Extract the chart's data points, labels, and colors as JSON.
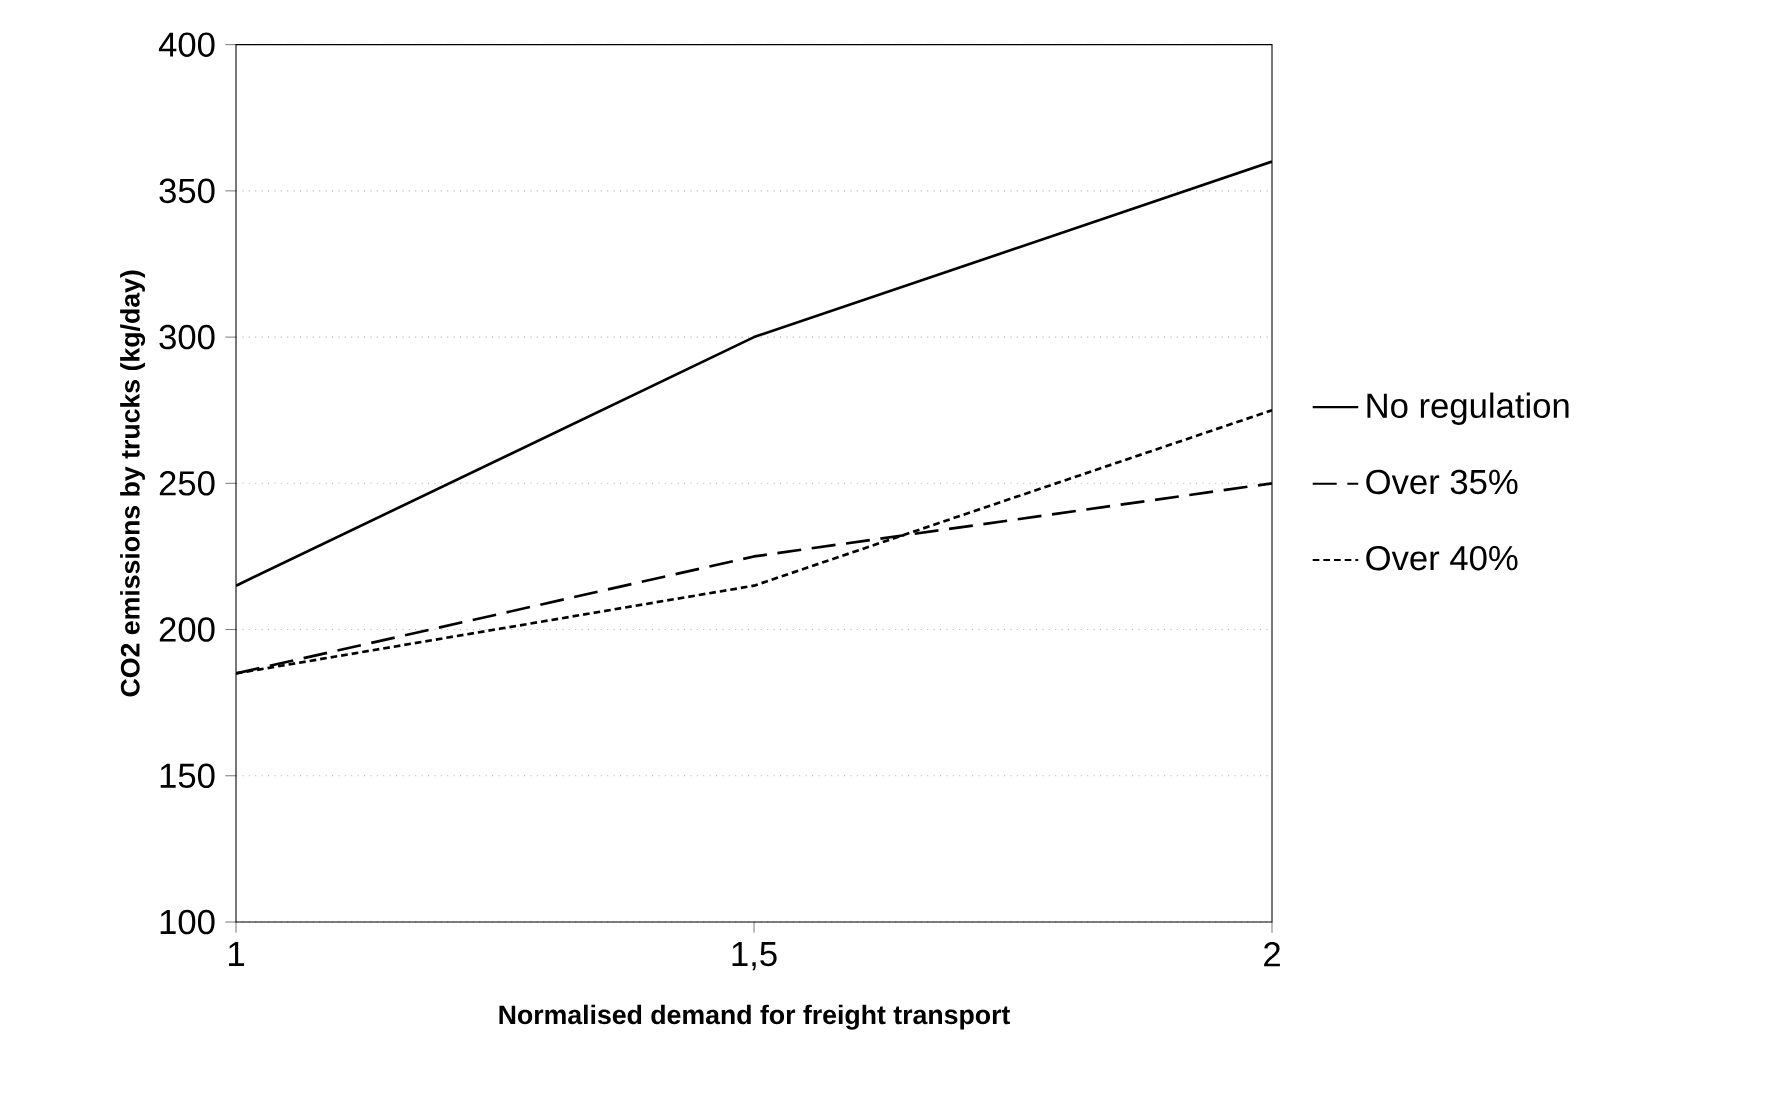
{
  "chart_data": {
    "type": "line",
    "xlabel": "Normalised demand for freight transport",
    "ylabel": "CO2 emissions by trucks (kg/day)",
    "x": [
      1,
      1.5,
      2
    ],
    "series": [
      {
        "name": "No regulation",
        "color": "#000000",
        "line_style": "solid",
        "values": [
          215,
          300,
          360
        ]
      },
      {
        "name": "Over 35%",
        "color": "#000000",
        "line_style": "dashed",
        "values": [
          185,
          225,
          250
        ]
      },
      {
        "name": "Over 40%",
        "color": "#000000",
        "line_style": "dotted",
        "values": [
          185,
          215,
          275
        ]
      }
    ],
    "xlim": [
      1,
      2
    ],
    "xticks": [
      1,
      {
        "value": 1.5,
        "label": "1,5"
      },
      2
    ],
    "ylim": [
      100,
      400
    ],
    "yticks": [
      100,
      150,
      200,
      250,
      300,
      350,
      400
    ],
    "grid": "y",
    "legend": "right",
    "marker": "none"
  }
}
